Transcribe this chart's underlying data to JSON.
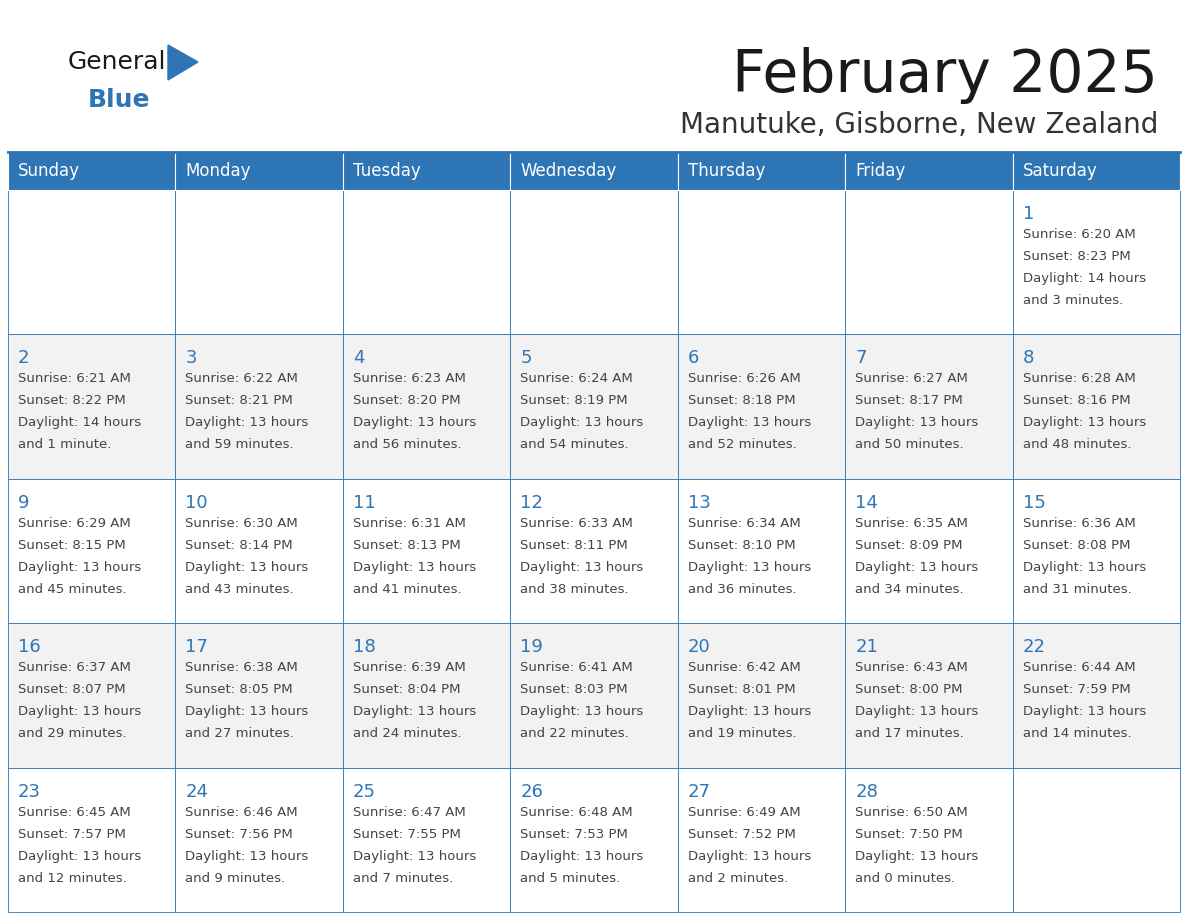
{
  "title": "February 2025",
  "subtitle": "Manutuke, Gisborne, New Zealand",
  "header_bg": "#2E75B6",
  "header_text_color": "#FFFFFF",
  "cell_bg_row0": "#FFFFFF",
  "cell_bg_row1": "#F2F2F2",
  "cell_bg_row2": "#FFFFFF",
  "cell_bg_row3": "#F2F2F2",
  "cell_bg_row4": "#FFFFFF",
  "border_color": "#2E75B6",
  "day_headers": [
    "Sunday",
    "Monday",
    "Tuesday",
    "Wednesday",
    "Thursday",
    "Friday",
    "Saturday"
  ],
  "title_color": "#1a1a1a",
  "subtitle_color": "#333333",
  "cell_text_color": "#444444",
  "day_num_color": "#2E75B6",
  "logo_general_color": "#1a1a1a",
  "logo_blue_color": "#2E75B6",
  "days": [
    {
      "day": 1,
      "col": 6,
      "row": 0,
      "sunrise": "6:20 AM",
      "sunset": "8:23 PM",
      "daylight_h": "14 hours",
      "daylight_m": "and 3 minutes."
    },
    {
      "day": 2,
      "col": 0,
      "row": 1,
      "sunrise": "6:21 AM",
      "sunset": "8:22 PM",
      "daylight_h": "14 hours",
      "daylight_m": "and 1 minute."
    },
    {
      "day": 3,
      "col": 1,
      "row": 1,
      "sunrise": "6:22 AM",
      "sunset": "8:21 PM",
      "daylight_h": "13 hours",
      "daylight_m": "and 59 minutes."
    },
    {
      "day": 4,
      "col": 2,
      "row": 1,
      "sunrise": "6:23 AM",
      "sunset": "8:20 PM",
      "daylight_h": "13 hours",
      "daylight_m": "and 56 minutes."
    },
    {
      "day": 5,
      "col": 3,
      "row": 1,
      "sunrise": "6:24 AM",
      "sunset": "8:19 PM",
      "daylight_h": "13 hours",
      "daylight_m": "and 54 minutes."
    },
    {
      "day": 6,
      "col": 4,
      "row": 1,
      "sunrise": "6:26 AM",
      "sunset": "8:18 PM",
      "daylight_h": "13 hours",
      "daylight_m": "and 52 minutes."
    },
    {
      "day": 7,
      "col": 5,
      "row": 1,
      "sunrise": "6:27 AM",
      "sunset": "8:17 PM",
      "daylight_h": "13 hours",
      "daylight_m": "and 50 minutes."
    },
    {
      "day": 8,
      "col": 6,
      "row": 1,
      "sunrise": "6:28 AM",
      "sunset": "8:16 PM",
      "daylight_h": "13 hours",
      "daylight_m": "and 48 minutes."
    },
    {
      "day": 9,
      "col": 0,
      "row": 2,
      "sunrise": "6:29 AM",
      "sunset": "8:15 PM",
      "daylight_h": "13 hours",
      "daylight_m": "and 45 minutes."
    },
    {
      "day": 10,
      "col": 1,
      "row": 2,
      "sunrise": "6:30 AM",
      "sunset": "8:14 PM",
      "daylight_h": "13 hours",
      "daylight_m": "and 43 minutes."
    },
    {
      "day": 11,
      "col": 2,
      "row": 2,
      "sunrise": "6:31 AM",
      "sunset": "8:13 PM",
      "daylight_h": "13 hours",
      "daylight_m": "and 41 minutes."
    },
    {
      "day": 12,
      "col": 3,
      "row": 2,
      "sunrise": "6:33 AM",
      "sunset": "8:11 PM",
      "daylight_h": "13 hours",
      "daylight_m": "and 38 minutes."
    },
    {
      "day": 13,
      "col": 4,
      "row": 2,
      "sunrise": "6:34 AM",
      "sunset": "8:10 PM",
      "daylight_h": "13 hours",
      "daylight_m": "and 36 minutes."
    },
    {
      "day": 14,
      "col": 5,
      "row": 2,
      "sunrise": "6:35 AM",
      "sunset": "8:09 PM",
      "daylight_h": "13 hours",
      "daylight_m": "and 34 minutes."
    },
    {
      "day": 15,
      "col": 6,
      "row": 2,
      "sunrise": "6:36 AM",
      "sunset": "8:08 PM",
      "daylight_h": "13 hours",
      "daylight_m": "and 31 minutes."
    },
    {
      "day": 16,
      "col": 0,
      "row": 3,
      "sunrise": "6:37 AM",
      "sunset": "8:07 PM",
      "daylight_h": "13 hours",
      "daylight_m": "and 29 minutes."
    },
    {
      "day": 17,
      "col": 1,
      "row": 3,
      "sunrise": "6:38 AM",
      "sunset": "8:05 PM",
      "daylight_h": "13 hours",
      "daylight_m": "and 27 minutes."
    },
    {
      "day": 18,
      "col": 2,
      "row": 3,
      "sunrise": "6:39 AM",
      "sunset": "8:04 PM",
      "daylight_h": "13 hours",
      "daylight_m": "and 24 minutes."
    },
    {
      "day": 19,
      "col": 3,
      "row": 3,
      "sunrise": "6:41 AM",
      "sunset": "8:03 PM",
      "daylight_h": "13 hours",
      "daylight_m": "and 22 minutes."
    },
    {
      "day": 20,
      "col": 4,
      "row": 3,
      "sunrise": "6:42 AM",
      "sunset": "8:01 PM",
      "daylight_h": "13 hours",
      "daylight_m": "and 19 minutes."
    },
    {
      "day": 21,
      "col": 5,
      "row": 3,
      "sunrise": "6:43 AM",
      "sunset": "8:00 PM",
      "daylight_h": "13 hours",
      "daylight_m": "and 17 minutes."
    },
    {
      "day": 22,
      "col": 6,
      "row": 3,
      "sunrise": "6:44 AM",
      "sunset": "7:59 PM",
      "daylight_h": "13 hours",
      "daylight_m": "and 14 minutes."
    },
    {
      "day": 23,
      "col": 0,
      "row": 4,
      "sunrise": "6:45 AM",
      "sunset": "7:57 PM",
      "daylight_h": "13 hours",
      "daylight_m": "and 12 minutes."
    },
    {
      "day": 24,
      "col": 1,
      "row": 4,
      "sunrise": "6:46 AM",
      "sunset": "7:56 PM",
      "daylight_h": "13 hours",
      "daylight_m": "and 9 minutes."
    },
    {
      "day": 25,
      "col": 2,
      "row": 4,
      "sunrise": "6:47 AM",
      "sunset": "7:55 PM",
      "daylight_h": "13 hours",
      "daylight_m": "and 7 minutes."
    },
    {
      "day": 26,
      "col": 3,
      "row": 4,
      "sunrise": "6:48 AM",
      "sunset": "7:53 PM",
      "daylight_h": "13 hours",
      "daylight_m": "and 5 minutes."
    },
    {
      "day": 27,
      "col": 4,
      "row": 4,
      "sunrise": "6:49 AM",
      "sunset": "7:52 PM",
      "daylight_h": "13 hours",
      "daylight_m": "and 2 minutes."
    },
    {
      "day": 28,
      "col": 5,
      "row": 4,
      "sunrise": "6:50 AM",
      "sunset": "7:50 PM",
      "daylight_h": "13 hours",
      "daylight_m": "and 0 minutes."
    }
  ]
}
